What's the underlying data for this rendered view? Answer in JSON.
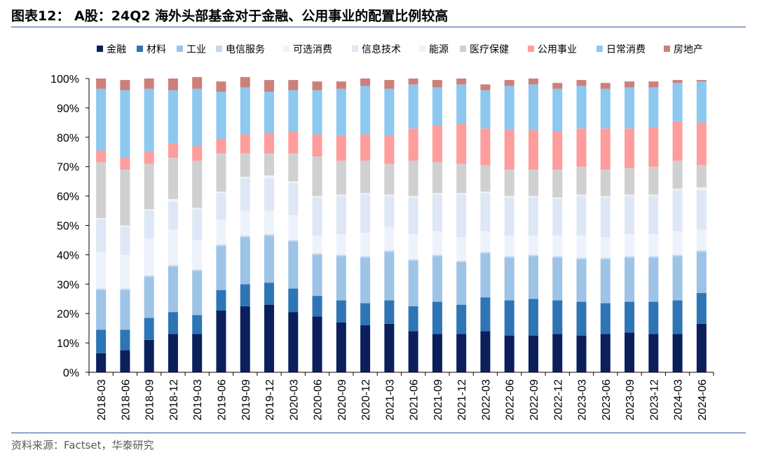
{
  "title": "图表12： A股：24Q2 海外头部基金对于金融、公用事业的配置比例较高",
  "source": "资料来源：Factset，华泰研究",
  "chart_data": {
    "type": "bar",
    "stacked": true,
    "legend_position": "top",
    "grid": false,
    "ylim": [
      0,
      100
    ],
    "y_ticks": [
      "0%",
      "10%",
      "20%",
      "30%",
      "40%",
      "50%",
      "60%",
      "70%",
      "80%",
      "90%",
      "100%"
    ],
    "categories": [
      "2018-03",
      "2018-06",
      "2018-09",
      "2018-12",
      "2019-03",
      "2019-06",
      "2019-09",
      "2019-12",
      "2020-03",
      "2020-06",
      "2020-09",
      "2020-12",
      "2021-03",
      "2021-06",
      "2021-09",
      "2021-12",
      "2022-03",
      "2022-06",
      "2022-09",
      "2022-12",
      "2023-03",
      "2023-06",
      "2023-09",
      "2023-12",
      "2024-03",
      "2024-06"
    ],
    "series": [
      {
        "name": "金融",
        "color": "#0b1f5c",
        "values": [
          6.5,
          7.5,
          11,
          13,
          13,
          21,
          22.5,
          23,
          20.5,
          19,
          17,
          16,
          16.5,
          14,
          13,
          13,
          14,
          12.5,
          12.5,
          13,
          12.5,
          13,
          13.5,
          13,
          13,
          16.5
        ]
      },
      {
        "name": "材料",
        "color": "#2e75b6",
        "values": [
          8,
          7,
          7.5,
          7.5,
          6.5,
          7,
          7.5,
          7.5,
          8,
          7,
          7.5,
          7.5,
          8,
          8.5,
          11,
          10,
          11.5,
          12,
          12.5,
          11.5,
          11.5,
          10.5,
          10.5,
          11,
          11.5,
          10.5
        ]
      },
      {
        "name": "工业",
        "color": "#9dc3e6",
        "values": [
          13.5,
          13.5,
          14,
          15.5,
          15,
          15,
          16,
          16,
          16,
          14,
          15,
          15.5,
          16.5,
          15.5,
          15.5,
          14.5,
          15,
          14.5,
          14.5,
          14.5,
          14.5,
          15,
          15,
          15,
          15,
          14
        ]
      },
      {
        "name": "电信服务",
        "color": "#c5d9ef",
        "values": [
          0.5,
          0.5,
          0.5,
          0.5,
          0.5,
          0.5,
          0.5,
          0.5,
          0.5,
          0.5,
          0.5,
          0.5,
          0.5,
          0.5,
          0.5,
          0.5,
          0.5,
          0.5,
          0.5,
          0.5,
          0.5,
          0.5,
          0.5,
          0.5,
          0.5,
          0.5
        ]
      },
      {
        "name": "可选消费",
        "color": "#eef3fb",
        "values": [
          12.5,
          11.5,
          12.5,
          12,
          10,
          8.5,
          8.5,
          8,
          8.5,
          6,
          7,
          8,
          8,
          8.5,
          8,
          8,
          7,
          7,
          6.5,
          7,
          7.5,
          7,
          7.5,
          7.5,
          8,
          7
        ]
      },
      {
        "name": "信息技术",
        "color": "#dde7f5",
        "values": [
          11,
          9.5,
          9.5,
          9.5,
          10.5,
          9,
          11,
          11,
          11,
          13,
          13,
          13,
          10.5,
          12.5,
          12.5,
          14.5,
          13,
          13,
          13,
          12.5,
          13.5,
          13.5,
          13,
          13,
          14,
          13.5
        ]
      },
      {
        "name": "能源",
        "color": "#f2f2f2",
        "values": [
          0.5,
          0.5,
          0.5,
          1,
          0.5,
          0.5,
          0.5,
          1,
          0.5,
          0.5,
          0.5,
          0.5,
          0.5,
          0.5,
          0.5,
          0.5,
          0.5,
          0.5,
          0.5,
          0.5,
          0.5,
          0.5,
          0.5,
          0.5,
          0.5,
          1
        ]
      },
      {
        "name": "医疗保健",
        "color": "#d0d0d0",
        "values": [
          19,
          19,
          15.5,
          14,
          16,
          13,
          8,
          7.5,
          9.5,
          13.5,
          11.5,
          11,
          10.5,
          12,
          10.5,
          10,
          9,
          9,
          9,
          9.5,
          9.5,
          9,
          9,
          9.5,
          9.5,
          7.5
        ]
      },
      {
        "name": "公用事业",
        "color": "#ff9c9c",
        "values": [
          4,
          4,
          4,
          5,
          5,
          5,
          6.5,
          7,
          7.5,
          7.5,
          8.5,
          9,
          9.5,
          11,
          12.5,
          13.5,
          12.5,
          13.5,
          13.5,
          13,
          13,
          14,
          13.5,
          13.5,
          13.5,
          14.5
        ]
      },
      {
        "name": "日常消费",
        "color": "#8cc8f0",
        "values": [
          21,
          23,
          21.5,
          18,
          19.5,
          16,
          16,
          14,
          14,
          15,
          16,
          16.5,
          16,
          15,
          13,
          13.5,
          13,
          15,
          15.5,
          14.5,
          14.5,
          13.5,
          14,
          13.5,
          13,
          14
        ]
      },
      {
        "name": "房地产",
        "color": "#cc8079",
        "values": [
          3.5,
          3.5,
          3.5,
          4,
          4,
          3.5,
          3.5,
          4,
          3.5,
          3,
          2.5,
          2.5,
          3,
          2,
          2.5,
          2,
          2,
          2,
          2,
          2,
          2,
          2,
          2,
          2,
          1,
          0.5
        ]
      }
    ]
  }
}
